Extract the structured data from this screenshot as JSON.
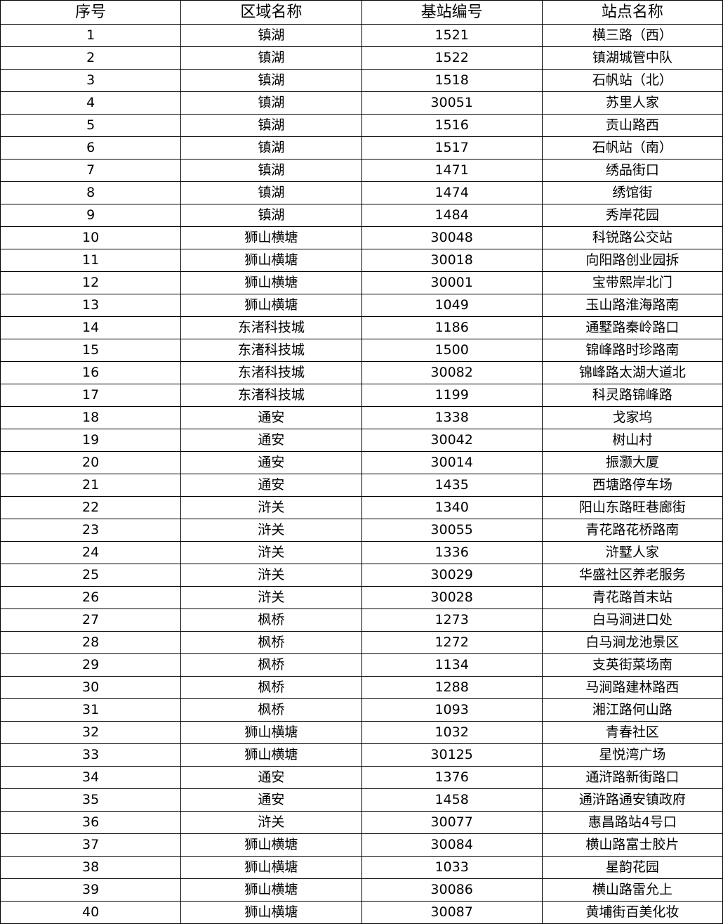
{
  "headers": [
    "序号",
    "区域名称",
    "基站编号",
    "站点名称"
  ],
  "rows": [
    [
      "1",
      "镇湖",
      "1521",
      "横三路（西）"
    ],
    [
      "2",
      "镇湖",
      "1522",
      "镇湖城管中队"
    ],
    [
      "3",
      "镇湖",
      "1518",
      "石帆站（北）"
    ],
    [
      "4",
      "镇湖",
      "30051",
      "苏里人家"
    ],
    [
      "5",
      "镇湖",
      "1516",
      "贡山路西"
    ],
    [
      "6",
      "镇湖",
      "1517",
      "石帆站（南）"
    ],
    [
      "7",
      "镇湖",
      "1471",
      "绣品街口"
    ],
    [
      "8",
      "镇湖",
      "1474",
      "绣馆街"
    ],
    [
      "9",
      "镇湖",
      "1484",
      "秀岸花园"
    ],
    [
      "10",
      "狮山横塘",
      "30048",
      "科锐路公交站"
    ],
    [
      "11",
      "狮山横塘",
      "30018",
      "向阳路创业园拆"
    ],
    [
      "12",
      "狮山横塘",
      "30001",
      "宝带熙岸北门"
    ],
    [
      "13",
      "狮山横塘",
      "1049",
      "玉山路淮海路南"
    ],
    [
      "14",
      "东渚科技城",
      "1186",
      "通墅路秦岭路口"
    ],
    [
      "15",
      "东渚科技城",
      "1500",
      "锦峰路时珍路南"
    ],
    [
      "16",
      "东渚科技城",
      "30082",
      "锦峰路太湖大道北"
    ],
    [
      "17",
      "东渚科技城",
      "1199",
      "科灵路锦峰路"
    ],
    [
      "18",
      "通安",
      "1338",
      "戈家坞"
    ],
    [
      "19",
      "通安",
      "30042",
      "树山村"
    ],
    [
      "20",
      "通安",
      "30014",
      "振灏大厦"
    ],
    [
      "21",
      "通安",
      "1435",
      "西塘路停车场"
    ],
    [
      "22",
      "浒关",
      "1340",
      "阳山东路旺巷廊街"
    ],
    [
      "23",
      "浒关",
      "30055",
      "青花路花桥路南"
    ],
    [
      "24",
      "浒关",
      "1336",
      "浒墅人家"
    ],
    [
      "25",
      "浒关",
      "30029",
      "华盛社区养老服务"
    ],
    [
      "26",
      "浒关",
      "30028",
      "青花路首末站"
    ],
    [
      "27",
      "枫桥",
      "1273",
      "白马涧进口处"
    ],
    [
      "28",
      "枫桥",
      "1272",
      "白马涧龙池景区"
    ],
    [
      "29",
      "枫桥",
      "1134",
      "支英街菜场南"
    ],
    [
      "30",
      "枫桥",
      "1288",
      "马涧路建林路西"
    ],
    [
      "31",
      "枫桥",
      "1093",
      "湘江路何山路"
    ],
    [
      "32",
      "狮山横塘",
      "1032",
      "青春社区"
    ],
    [
      "33",
      "狮山横塘",
      "30125",
      "星悦湾广场"
    ],
    [
      "34",
      "通安",
      "1376",
      "通浒路新街路口"
    ],
    [
      "35",
      "通安",
      "1458",
      "通浒路通安镇政府"
    ],
    [
      "36",
      "浒关",
      "30077",
      "惠昌路站4号口"
    ],
    [
      "37",
      "狮山横塘",
      "30084",
      "横山路富士胶片"
    ],
    [
      "38",
      "狮山横塘",
      "1033",
      "星韵花园"
    ],
    [
      "39",
      "狮山横塘",
      "30086",
      "横山路雷允上"
    ],
    [
      "40",
      "狮山横塘",
      "30087",
      "黄埔街百美化妆"
    ]
  ]
}
